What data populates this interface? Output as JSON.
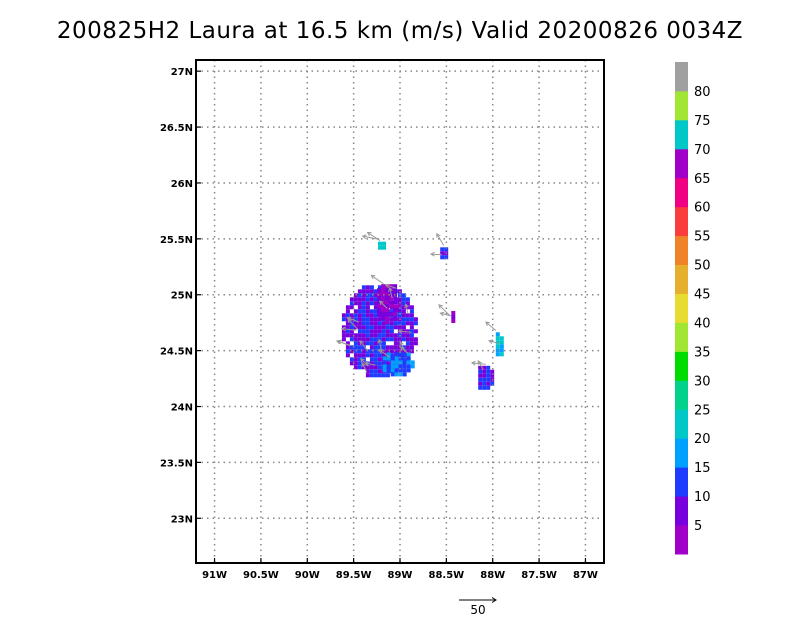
{
  "chart_data": {
    "type": "heatmap",
    "title": "200825H2 Laura at 16.5 km (m/s) Valid 20200826 0034Z",
    "x_ticks": [
      "91W",
      "90.5W",
      "90W",
      "89.5W",
      "89W",
      "88.5W",
      "88W",
      "87.5W",
      "87W"
    ],
    "y_ticks": [
      "27N",
      "26.5N",
      "26N",
      "25.5N",
      "25N",
      "24.5N",
      "24N",
      "23.5N",
      "23N"
    ],
    "xlim": [
      -91.2,
      -86.8
    ],
    "ylim": [
      22.6,
      27.1
    ],
    "grid": true,
    "colorbar": {
      "labels": [
        "5",
        "10",
        "15",
        "20",
        "25",
        "30",
        "35",
        "40",
        "45",
        "50",
        "55",
        "60",
        "65",
        "70",
        "75",
        "80"
      ],
      "colors": [
        "#a000c8",
        "#7800dc",
        "#1e3cff",
        "#00a0ff",
        "#00c8c8",
        "#00d28c",
        "#00dc00",
        "#a0e632",
        "#e6dc32",
        "#e6af2d",
        "#f08228",
        "#fa3c3c",
        "#f00082",
        "#a000c8",
        "#00c8c8",
        "#a0e632",
        "#a0a0a0"
      ]
    },
    "reference_vector": {
      "label": "50"
    },
    "regions": [
      {
        "name": "main-echo",
        "lon": -89.25,
        "lat": 24.7,
        "rlon": 0.42,
        "rlat": 0.42,
        "speed": 10
      },
      {
        "name": "main-core",
        "lon": -89.15,
        "lat": 24.95,
        "rlon": 0.14,
        "rlat": 0.18,
        "speed": 5
      },
      {
        "name": "main-southeast",
        "lon": -89.05,
        "lat": 24.4,
        "rlon": 0.18,
        "rlat": 0.12,
        "speed": 15
      },
      {
        "name": "north-cell",
        "lon": -89.22,
        "lat": 25.47,
        "rlon": 0.06,
        "rlat": 0.04,
        "speed": 20
      },
      {
        "name": "mid-cell",
        "lon": -88.55,
        "lat": 25.4,
        "rlon": 0.06,
        "rlat": 0.06,
        "speed": 10
      },
      {
        "name": "small-cell",
        "lon": -88.45,
        "lat": 24.83,
        "rlon": 0.04,
        "rlat": 0.06,
        "speed": 5
      },
      {
        "name": "east-cell",
        "lon": -87.95,
        "lat": 24.58,
        "rlon": 0.06,
        "rlat": 0.12,
        "speed": 20
      },
      {
        "name": "southeast-cell",
        "lon": -88.1,
        "lat": 24.28,
        "rlon": 0.1,
        "rlat": 0.12,
        "speed": 10
      }
    ]
  }
}
